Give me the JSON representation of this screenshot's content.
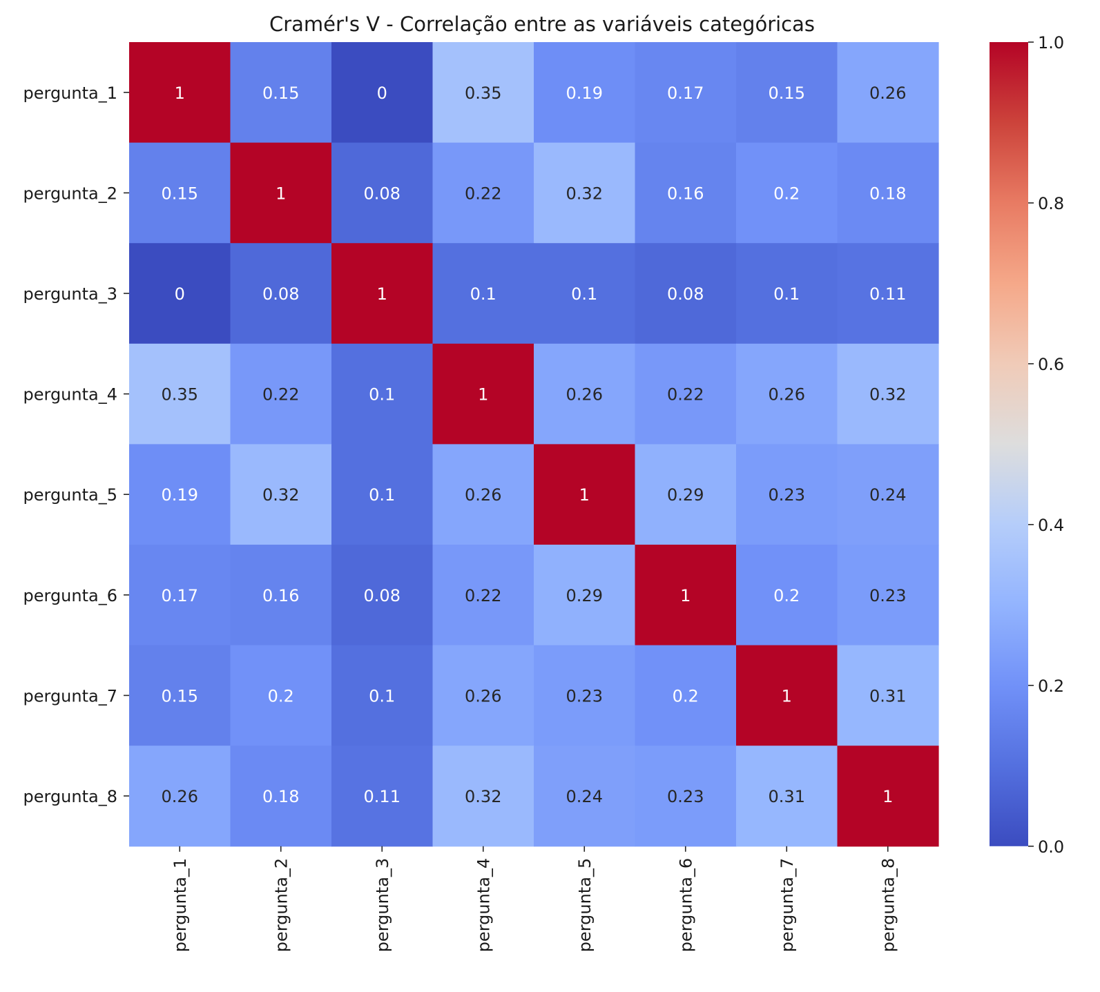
{
  "chart_data": {
    "type": "heatmap",
    "title": "Cramér's V - Correlação entre as variáveis categóricas",
    "xlabel": "",
    "ylabel": "",
    "x_categories": [
      "pergunta_1",
      "pergunta_2",
      "pergunta_3",
      "pergunta_4",
      "pergunta_5",
      "pergunta_6",
      "pergunta_7",
      "pergunta_8"
    ],
    "y_categories": [
      "pergunta_1",
      "pergunta_2",
      "pergunta_3",
      "pergunta_4",
      "pergunta_5",
      "pergunta_6",
      "pergunta_7",
      "pergunta_8"
    ],
    "values": [
      [
        1,
        0.15,
        0,
        0.35,
        0.19,
        0.17,
        0.15,
        0.26
      ],
      [
        0.15,
        1,
        0.08,
        0.22,
        0.32,
        0.16,
        0.2,
        0.18
      ],
      [
        0,
        0.08,
        1,
        0.1,
        0.1,
        0.08,
        0.1,
        0.11
      ],
      [
        0.35,
        0.22,
        0.1,
        1,
        0.26,
        0.22,
        0.26,
        0.32
      ],
      [
        0.19,
        0.32,
        0.1,
        0.26,
        1,
        0.29,
        0.23,
        0.24
      ],
      [
        0.17,
        0.16,
        0.08,
        0.22,
        0.29,
        1,
        0.2,
        0.23
      ],
      [
        0.15,
        0.2,
        0.1,
        0.26,
        0.23,
        0.2,
        1,
        0.31
      ],
      [
        0.26,
        0.18,
        0.11,
        0.32,
        0.24,
        0.23,
        0.31,
        1
      ]
    ],
    "colormap": "coolwarm",
    "vmin": 0,
    "vmax": 1,
    "colorbar_ticks": [
      "0.0",
      "0.2",
      "0.4",
      "0.6",
      "0.8",
      "1.0"
    ],
    "annotations": true,
    "grid": false,
    "colorbar_position": "right"
  }
}
